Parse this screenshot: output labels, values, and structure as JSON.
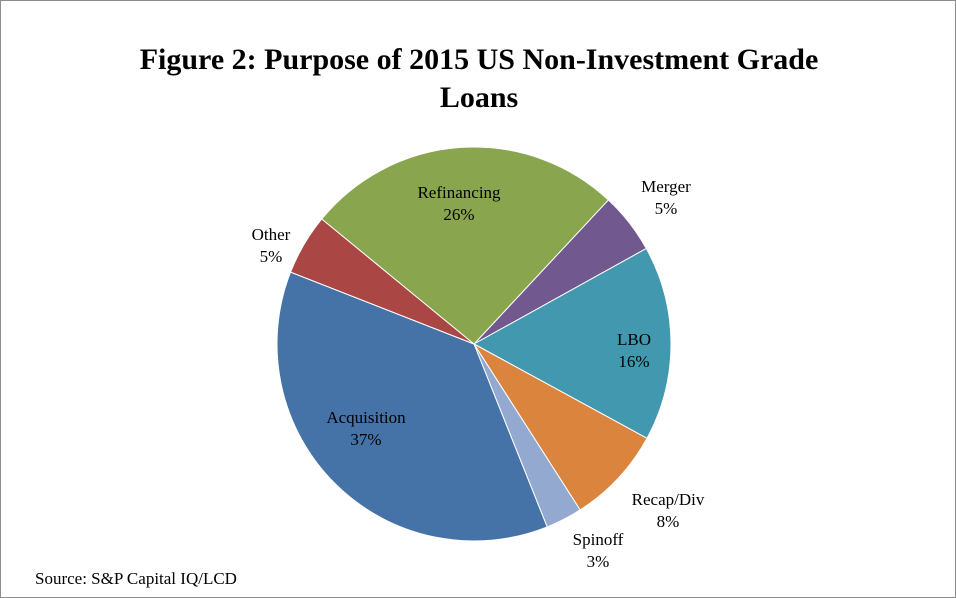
{
  "chart_data": {
    "type": "pie",
    "title": "Figure 2: Purpose of 2015 US Non-Investment Grade Loans",
    "source": "Source: S&P Capital IQ/LCD",
    "categories": [
      "Merger",
      "LBO",
      "Recap/Div",
      "Spinoff",
      "Acquisition",
      "Other",
      "Refinancing"
    ],
    "values": [
      5,
      16,
      8,
      3,
      37,
      5,
      26
    ],
    "value_labels": [
      "5%",
      "16%",
      "8%",
      "3%",
      "37%",
      "5%",
      "26%"
    ],
    "colors": [
      "#71588f",
      "#4198af",
      "#db843d",
      "#93a9cf",
      "#4572a7",
      "#aa4643",
      "#89a54e"
    ],
    "start_angle": 43
  }
}
